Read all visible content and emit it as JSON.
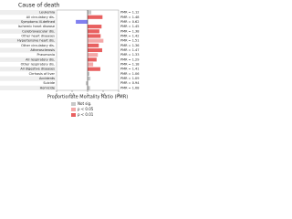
{
  "chart_data": {
    "type": "hbar",
    "title": "Cause of death",
    "xlabel": "Proportionate Mortality Ratio (PMR)",
    "categories": [
      "Leukemia",
      "All circulatory dis.",
      "Symptoms ill-defined",
      "Ischemic heart disease",
      "Cerebrovascular dis.",
      "Other heart diseases",
      "Hypertensive heart dis.",
      "Other circulatory dis.",
      "Atherosclerosis",
      "Pneumonia",
      "All respiratory dis.",
      "Other respiratory dis.",
      "All digestive diseases",
      "Cirrhosis of liver",
      "Accidents",
      "Suicide",
      "Homicide"
    ],
    "values": [
      1.12,
      1.48,
      0.62,
      1.45,
      1.38,
      1.42,
      1.51,
      1.36,
      1.47,
      1.33,
      1.29,
      1.18,
      1.41,
      1.06,
      1.09,
      0.94,
      1.08
    ],
    "value_labels": [
      "PMR = 1.12",
      "PMR = 1.48",
      "PMR = 0.62",
      "PMR = 1.45",
      "PMR = 1.38",
      "PMR = 1.42",
      "PMR = 1.51",
      "PMR = 1.36",
      "PMR = 1.47",
      "PMR = 1.33",
      "PMR = 1.29",
      "PMR = 1.18",
      "PMR = 1.41",
      "PMR = 1.06",
      "PMR = 1.09",
      "PMR = 0.94",
      "PMR = 1.08"
    ],
    "significance": [
      0,
      2,
      1,
      2,
      2,
      2,
      1,
      2,
      2,
      1,
      2,
      1,
      2,
      0,
      0,
      0,
      0
    ],
    "legend": [
      {
        "name": "Not sig.",
        "color": "#c8c8c8"
      },
      {
        "name": "p < 0.05",
        "color": "#f4a8a8"
      },
      {
        "name": "p < 0.01",
        "color": "#e86060"
      }
    ],
    "low_color": "#8080f0",
    "xlim": [
      0,
      2
    ],
    "xticks": [
      0,
      0.5,
      1,
      1.5,
      2
    ],
    "reference": 1
  }
}
